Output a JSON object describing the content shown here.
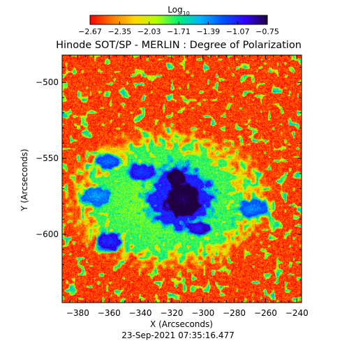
{
  "chart_data": {
    "type": "heatmap",
    "title": "Hinode SOT/SP - MERLIN : Degree of Polarization",
    "xlabel": "X (Arcseconds)",
    "ylabel": "Y (Arcseconds)",
    "footer": "23-Sep-2021 07:35:16.477",
    "xlim": [
      -390,
      -237
    ],
    "ylim": [
      -645,
      -482
    ],
    "x_ticks": [
      -380,
      -360,
      -340,
      -320,
      -300,
      -280,
      -260,
      -240
    ],
    "y_ticks": [
      -500,
      -550,
      -600
    ],
    "colorbar": {
      "title_base": "Log",
      "title_sub": "10",
      "min": -2.67,
      "max": -0.75,
      "tick_labels": [
        "-2.67",
        "-2.35",
        "-2.03",
        "-1.71",
        "-1.39",
        "-1.07",
        "-0.75"
      ],
      "colormap": [
        "#ff0000",
        "#ff7a00",
        "#ffd800",
        "#b4ff00",
        "#00f07a",
        "#00b4ff",
        "#0050ff",
        "#3400ff",
        "#200040"
      ]
    },
    "grid": false,
    "background_level": -2.55,
    "features": [
      {
        "name": "sunspot umbra",
        "x": -313,
        "y": -577,
        "rx": 11,
        "ry": 10,
        "level": -0.78
      },
      {
        "name": "umbra core N",
        "x": -317,
        "y": -563,
        "rx": 5,
        "ry": 5,
        "level": -0.8
      },
      {
        "name": "penumbra",
        "x": -314,
        "y": -576,
        "rx": 18,
        "ry": 18,
        "level": -1.25
      },
      {
        "name": "pore W",
        "x": -339,
        "y": -559,
        "rx": 8,
        "ry": 5,
        "level": -1.2
      },
      {
        "name": "pore SW",
        "x": -360,
        "y": -605,
        "rx": 7,
        "ry": 5,
        "level": -1.15
      },
      {
        "name": "pore SE",
        "x": -303,
        "y": -596,
        "rx": 6,
        "ry": 4,
        "level": -1.1
      },
      {
        "name": "plage NW",
        "x": -360,
        "y": -552,
        "rx": 8,
        "ry": 4,
        "level": -1.35
      },
      {
        "name": "plage E",
        "x": -268,
        "y": -583,
        "rx": 9,
        "ry": 5,
        "level": -1.4
      },
      {
        "name": "network W",
        "x": -368,
        "y": -575,
        "rx": 8,
        "ry": 6,
        "level": -1.45
      },
      {
        "name": "active region halo",
        "x": -322,
        "y": -577,
        "rx": 48,
        "ry": 35,
        "level": -1.95
      }
    ]
  }
}
